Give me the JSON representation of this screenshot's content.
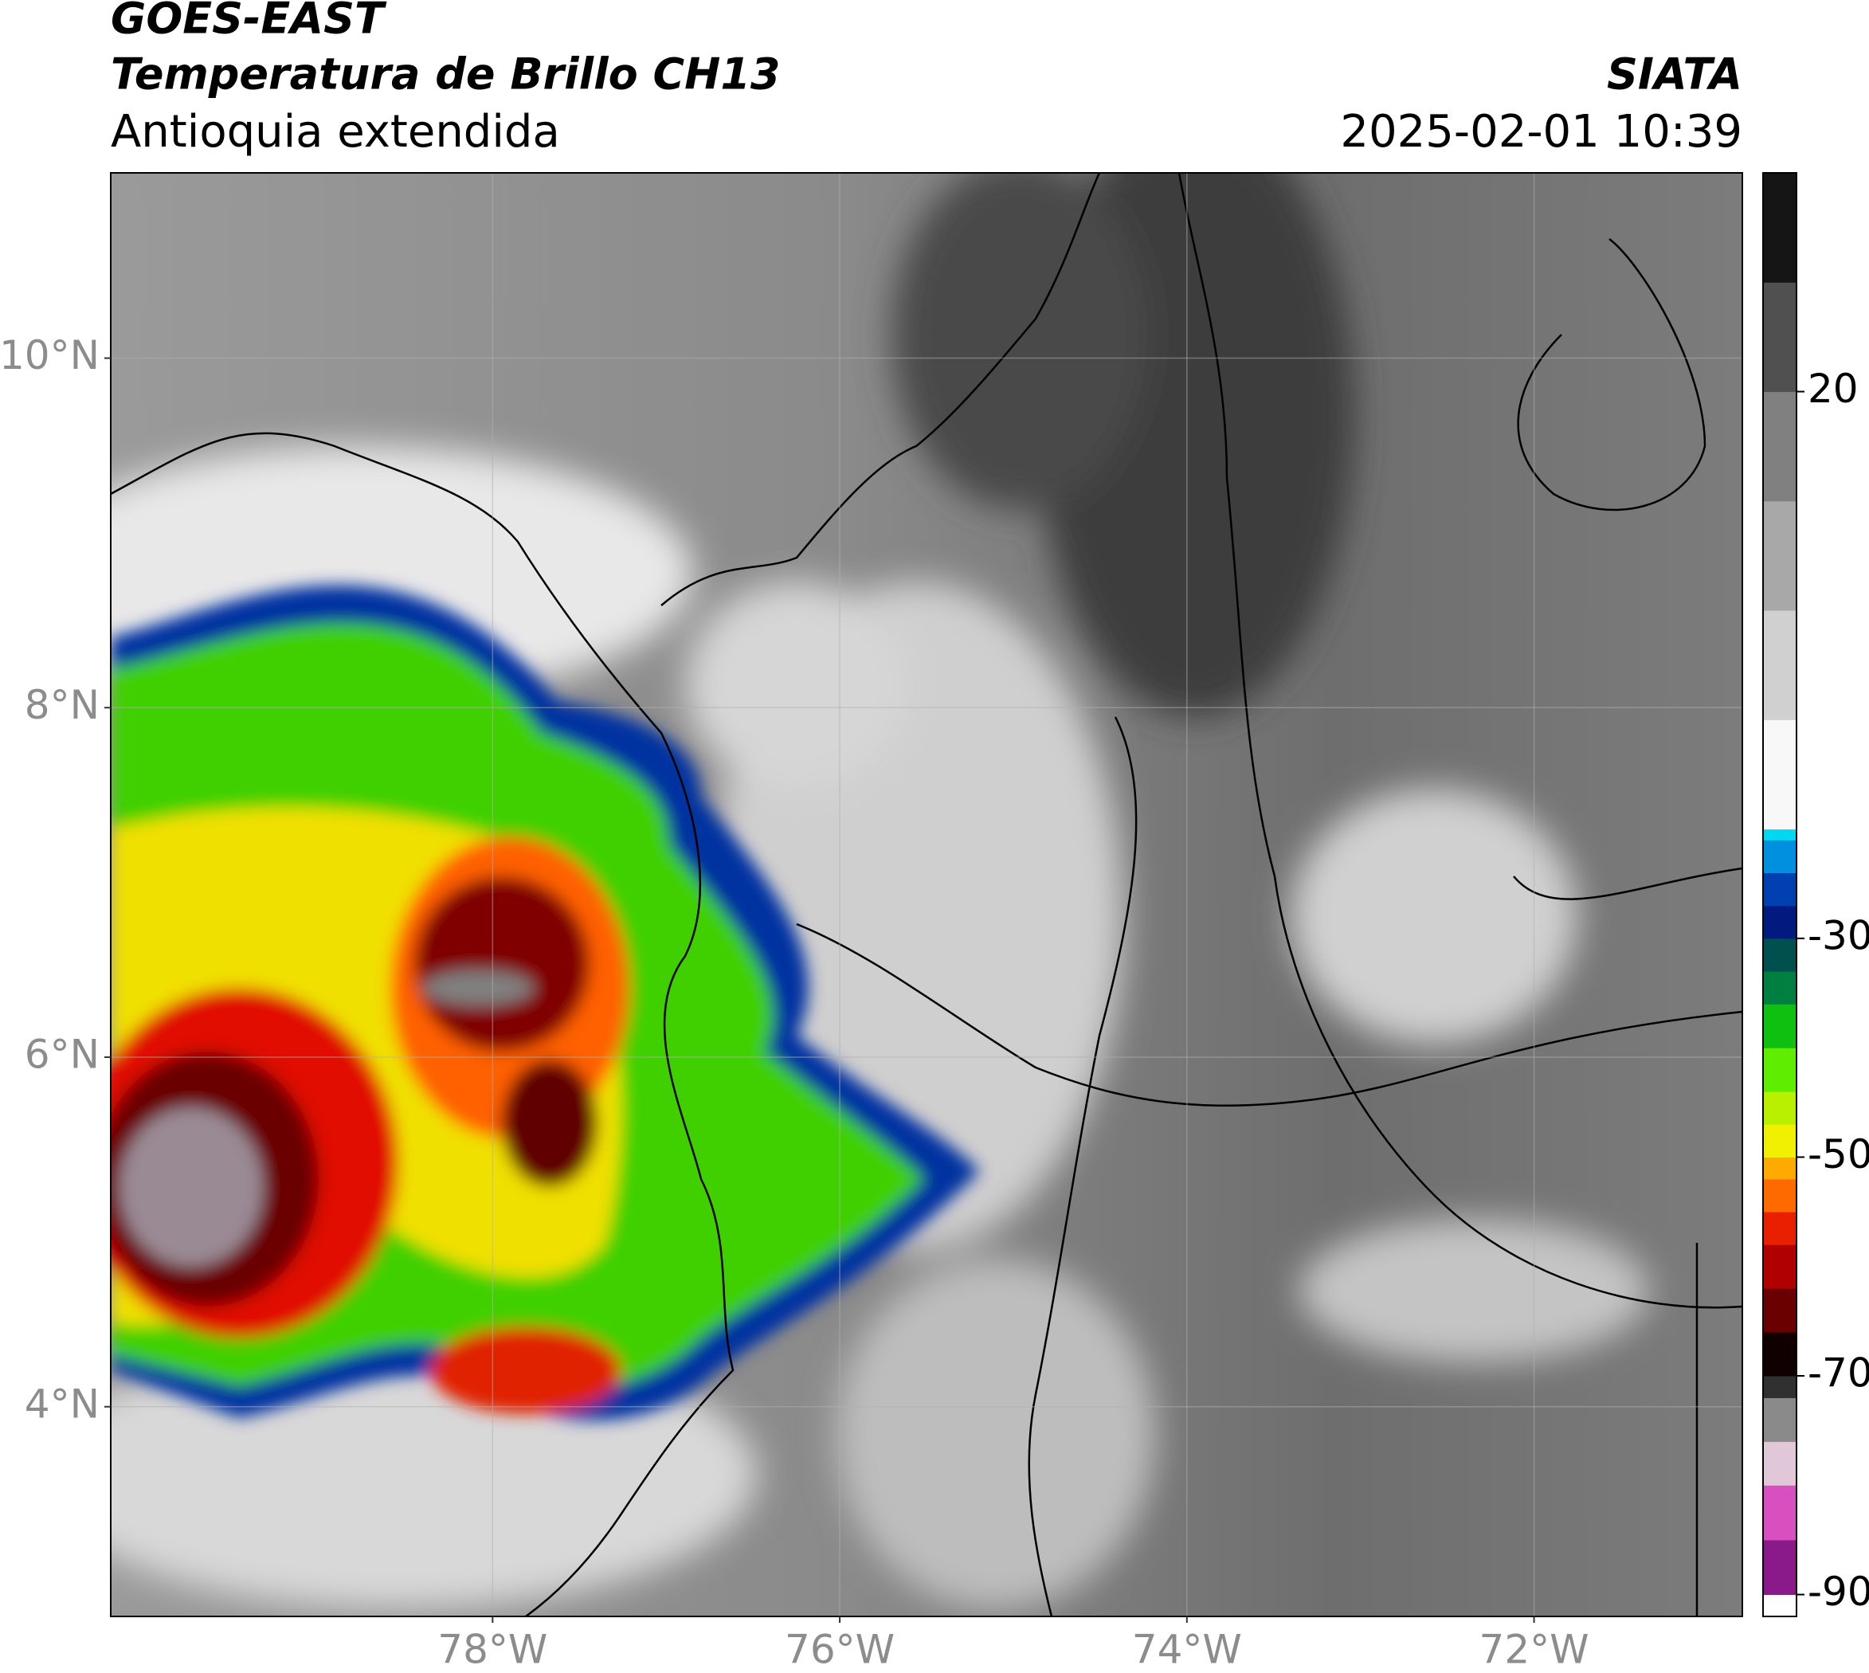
{
  "header": {
    "title": "GOES-EAST",
    "subtitle": "Temperatura de Brillo CH13",
    "region": "Antioquia extendida",
    "agency": "SIATA",
    "datetime": "2025-02-01 10:39"
  },
  "map": {
    "xlim": [
      -80.2,
      -70.8
    ],
    "ylim": [
      2.8,
      11.06
    ],
    "xticks": [
      {
        "value": -78,
        "label": "78°W"
      },
      {
        "value": -76,
        "label": "76°W"
      },
      {
        "value": -74,
        "label": "74°W"
      },
      {
        "value": -72,
        "label": "72°W"
      }
    ],
    "yticks": [
      {
        "value": 4,
        "label": "4°N"
      },
      {
        "value": 6,
        "label": "6°N"
      },
      {
        "value": 8,
        "label": "8°N"
      },
      {
        "value": 10,
        "label": "10°N"
      }
    ],
    "grid": true
  },
  "colorbar": {
    "lim": [
      -92,
      40
    ],
    "ticks": [
      20,
      -30,
      -50,
      -70,
      -90
    ],
    "bins": [
      -92,
      -90,
      -85,
      -80,
      -76,
      -72,
      -70,
      -66,
      -62,
      -58,
      -55,
      -52,
      -50,
      -47,
      -44,
      -40,
      -36,
      -33,
      -30,
      -27,
      -24,
      -21,
      -20,
      -10,
      0,
      10,
      20,
      30,
      40
    ],
    "colors": [
      "#ffffff",
      "#8a1a8a",
      "#d850c0",
      "#e0c8d8",
      "#8a8a8a",
      "#303030",
      "#100000",
      "#6a0000",
      "#b00000",
      "#e82000",
      "#ff6a00",
      "#ffaa00",
      "#f0f000",
      "#b8f000",
      "#60ee00",
      "#10c010",
      "#008040",
      "#005050",
      "#001a80",
      "#0040b0",
      "#0090e0",
      "#00d8f0",
      "#f8f8f8",
      "#d0d0d0",
      "#a8a8a8",
      "#808080",
      "#505050",
      "#151515"
    ]
  }
}
